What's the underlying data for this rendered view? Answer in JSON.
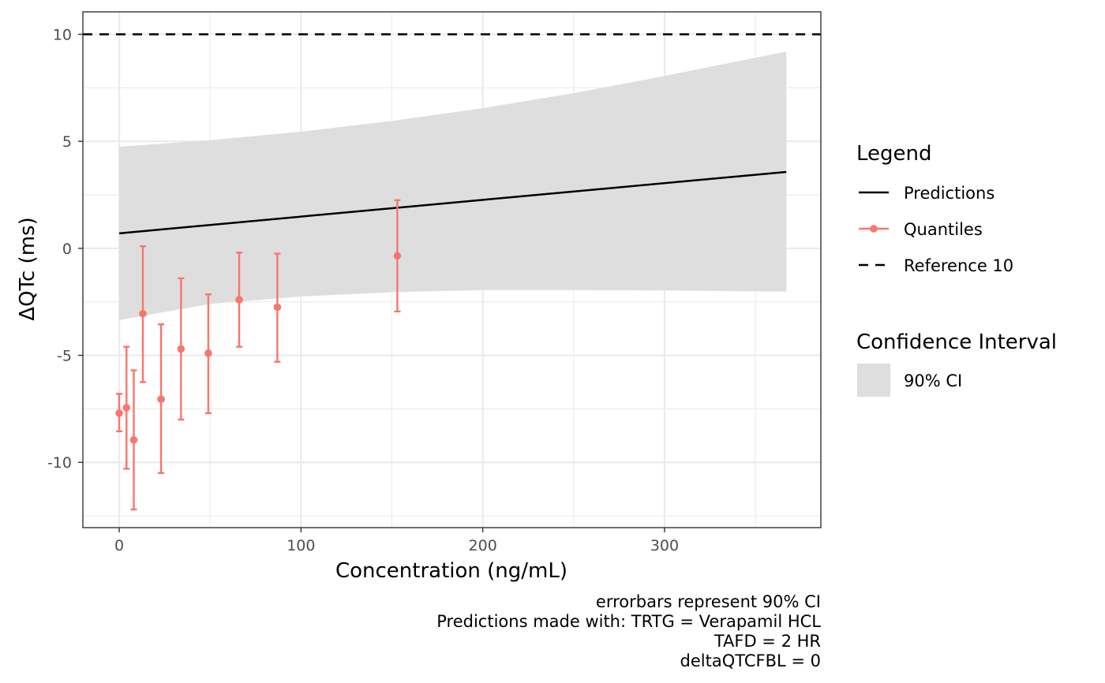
{
  "chart_data": {
    "type": "line",
    "xlabel": "Concentration (ng/mL)",
    "ylabel": "ΔQTc (ms)",
    "xlim": [
      -20,
      386
    ],
    "ylim": [
      -13.05,
      11.05
    ],
    "x_ticks": [
      0,
      100,
      200,
      300
    ],
    "x_tick_labels": [
      "0",
      "100",
      "200",
      "300"
    ],
    "y_ticks": [
      -10,
      -5,
      0,
      5,
      10
    ],
    "y_tick_labels": [
      "-10",
      "-5",
      "0",
      "5",
      "10"
    ],
    "grid": true,
    "prediction": {
      "x": [
        0,
        367
      ],
      "y": [
        0.7,
        3.57
      ]
    },
    "ci_band": {
      "x": [
        0,
        50,
        100,
        150,
        200,
        250,
        300,
        367
      ],
      "upper": [
        4.75,
        5.05,
        5.45,
        5.95,
        6.55,
        7.25,
        8.05,
        9.2
      ],
      "lower": [
        -3.35,
        -2.6,
        -2.25,
        -2.05,
        -1.95,
        -1.95,
        -1.97,
        -2.02
      ]
    },
    "quantiles": [
      {
        "x": 0,
        "y": -7.7,
        "lo": -8.55,
        "hi": -6.8
      },
      {
        "x": 4,
        "y": -7.45,
        "lo": -10.3,
        "hi": -4.6
      },
      {
        "x": 8,
        "y": -8.95,
        "lo": -12.2,
        "hi": -5.7
      },
      {
        "x": 13,
        "y": -3.05,
        "lo": -6.25,
        "hi": 0.1
      },
      {
        "x": 23,
        "y": -7.05,
        "lo": -10.5,
        "hi": -3.55
      },
      {
        "x": 34,
        "y": -4.7,
        "lo": -8.0,
        "hi": -1.4
      },
      {
        "x": 49,
        "y": -4.9,
        "lo": -7.7,
        "hi": -2.15
      },
      {
        "x": 66,
        "y": -2.4,
        "lo": -4.6,
        "hi": -0.2
      },
      {
        "x": 87,
        "y": -2.75,
        "lo": -5.3,
        "hi": -0.25
      },
      {
        "x": 153,
        "y": -0.35,
        "lo": -2.95,
        "hi": 2.25
      }
    ],
    "reference_line": {
      "y": 10
    },
    "colors": {
      "prediction": "#000000",
      "quantiles": "#F8766D",
      "ci_fill": "#DEDEDE",
      "reference": "#000000",
      "grid": "#EBEBEB"
    }
  },
  "legend": {
    "title": "Legend",
    "items": [
      {
        "label": "Predictions"
      },
      {
        "label": "Quantiles"
      },
      {
        "label": "Reference 10"
      }
    ],
    "ci_title": "Confidence Interval",
    "ci_item": "90% CI"
  },
  "caption": {
    "lines": [
      "errorbars represent 90% CI ",
      "Predictions made with: TRTG = Verapamil HCL",
      "TAFD = 2 HR",
      "deltaQTCFBL = 0"
    ]
  }
}
